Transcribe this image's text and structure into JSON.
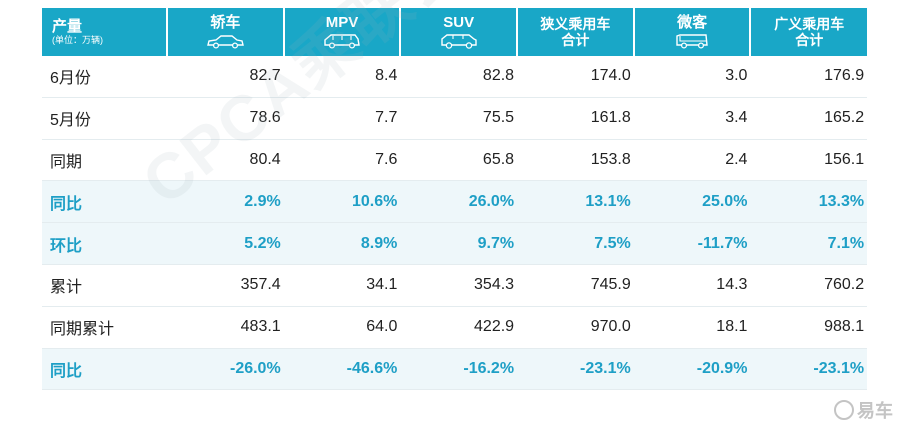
{
  "header": {
    "corner_title": "产量",
    "corner_unit": "(单位：万辆)",
    "columns": [
      {
        "label": "轿车",
        "icon": "sedan-icon"
      },
      {
        "label": "MPV",
        "icon": "mpv-icon"
      },
      {
        "label": "SUV",
        "icon": "suv-icon"
      },
      {
        "label_lines": [
          "狭义乘用车",
          "合计"
        ]
      },
      {
        "label": "微客",
        "icon": "minivan-icon"
      },
      {
        "label_lines": [
          "广义乘用车",
          "合计"
        ]
      }
    ]
  },
  "rows": [
    {
      "label": "6月份",
      "values": [
        "82.7",
        "8.4",
        "82.8",
        "174.0",
        "3.0",
        "176.9"
      ],
      "highlight": false
    },
    {
      "label": "5月份",
      "values": [
        "78.6",
        "7.7",
        "75.5",
        "161.8",
        "3.4",
        "165.2"
      ],
      "highlight": false
    },
    {
      "label": "同期",
      "values": [
        "80.4",
        "7.6",
        "65.8",
        "153.8",
        "2.4",
        "156.1"
      ],
      "highlight": false
    },
    {
      "label": "同比",
      "values": [
        "2.9%",
        "10.6%",
        "26.0%",
        "13.1%",
        "25.0%",
        "13.3%"
      ],
      "highlight": true
    },
    {
      "label": "环比",
      "values": [
        "5.2%",
        "8.9%",
        "9.7%",
        "7.5%",
        "-11.7%",
        "7.1%"
      ],
      "highlight": true
    },
    {
      "label": "累计",
      "values": [
        "357.4",
        "34.1",
        "354.3",
        "745.9",
        "14.3",
        "760.2"
      ],
      "highlight": false
    },
    {
      "label": "同期累计",
      "values": [
        "483.1",
        "64.0",
        "422.9",
        "970.0",
        "18.1",
        "988.1"
      ],
      "highlight": false
    },
    {
      "label": "同比",
      "values": [
        "-26.0%",
        "-46.6%",
        "-16.2%",
        "-23.1%",
        "-20.9%",
        "-23.1%"
      ],
      "highlight": true
    }
  ],
  "watermark": "CPCA乘联会",
  "logo_text": "易车",
  "colors": {
    "header_bg": "#19a7c7",
    "highlight_text": "#1e9fc6",
    "highlight_bg": "#eef7fa"
  }
}
